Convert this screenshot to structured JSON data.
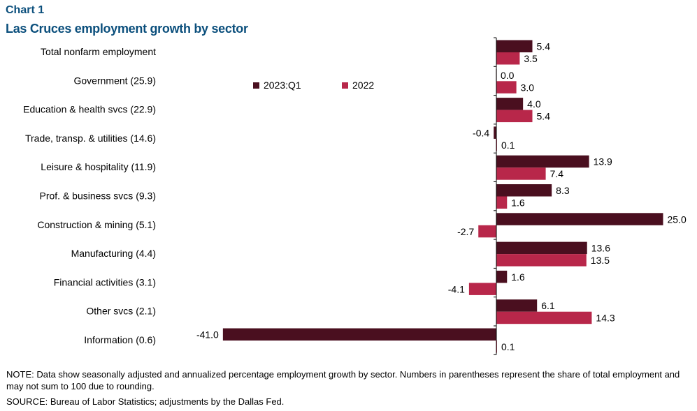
{
  "header": {
    "chart_label": "Chart 1",
    "title": "Las Cruces employment growth by sector"
  },
  "footer": {
    "note": "NOTE: Data show seasonally adjusted and annualized percentage employment growth by sector. Numbers in parentheses represent the share of total employment and may not sum to 100 due to rounding.",
    "source": "SOURCE: Bureau of Labor Statistics; adjustments by the Dallas Fed."
  },
  "colors": {
    "series_2023": "#4a0f1f",
    "series_2022": "#b8274a",
    "axis": "#000000"
  },
  "chart_data": {
    "type": "bar",
    "orientation": "horizontal",
    "title": "Las Cruces employment growth by sector",
    "categories": [
      "Total nonfarm employment",
      "Government (25.9)",
      "Education & health svcs (22.9)",
      "Trade, transp. & utilities (14.6)",
      "Leisure & hospitality (11.9)",
      "Prof. & business svcs (9.3)",
      "Construction & mining (5.1)",
      "Manufacturing (4.4)",
      "Financial activities (3.1)",
      "Other svcs (2.1)",
      "Information (0.6)"
    ],
    "series": [
      {
        "name": "2023:Q1",
        "values": [
          5.4,
          0.0,
          4.0,
          -0.4,
          13.9,
          8.3,
          25.0,
          13.6,
          1.6,
          6.1,
          -41.0
        ],
        "labels": [
          "5.4",
          "0.0",
          "4.0",
          "-0.4",
          "13.9",
          "8.3",
          "25.0",
          "13.6",
          "1.6",
          "6.1",
          "-41.0"
        ]
      },
      {
        "name": "2022",
        "values": [
          3.5,
          3.0,
          5.4,
          0.1,
          7.4,
          1.6,
          -2.7,
          13.5,
          -4.1,
          14.3,
          0.1
        ],
        "labels": [
          "3.5",
          "3.0",
          "5.4",
          "0.1",
          "7.4",
          "1.6",
          "-2.7",
          "13.5",
          "-4.1",
          "14.3",
          "0.1"
        ]
      }
    ],
    "xlim": [
      -41.0,
      25.0
    ],
    "legend": {
      "position": "upper-left of plot",
      "entries": [
        "2023:Q1",
        "2022"
      ]
    },
    "grid": false,
    "xlabel": "",
    "ylabel": ""
  }
}
